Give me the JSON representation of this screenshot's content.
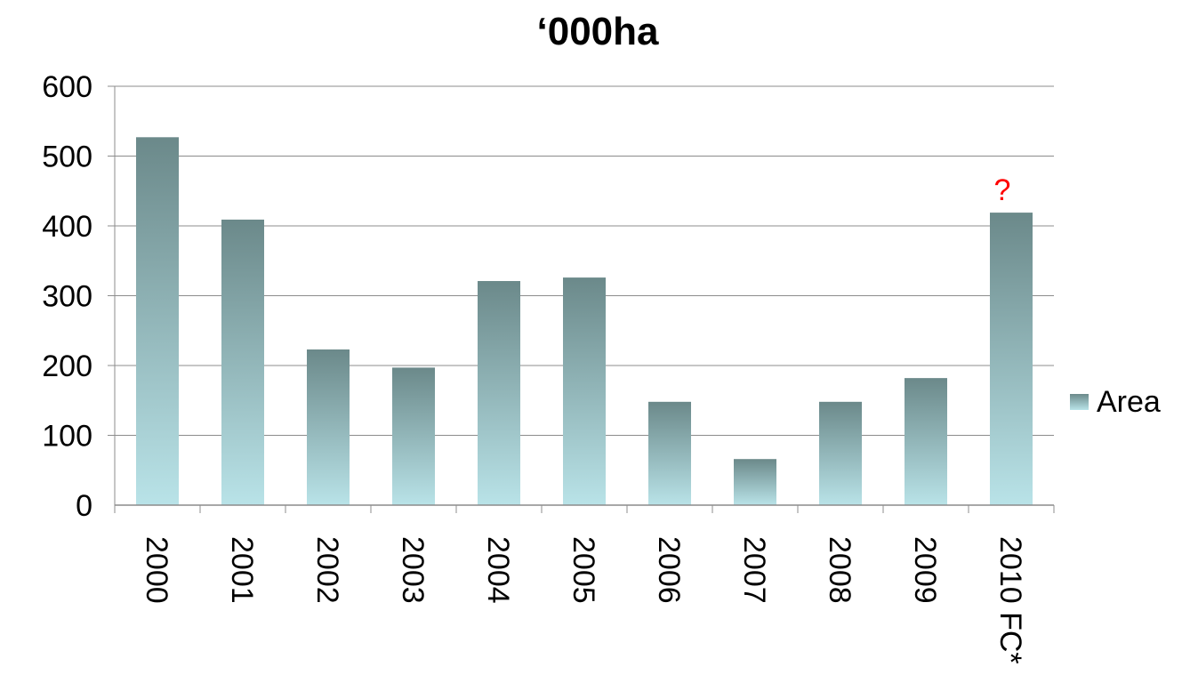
{
  "chart_data": {
    "type": "bar",
    "title": "‘000ha",
    "xlabel": "",
    "ylabel": "",
    "categories": [
      "2000",
      "2001",
      "2002",
      "2003",
      "2004",
      "2005",
      "2006",
      "2007",
      "2008",
      "2009",
      "2010 FC*"
    ],
    "series": [
      {
        "name": "Area",
        "values": [
          527,
          409,
          223,
          197,
          321,
          326,
          148,
          66,
          148,
          182,
          419
        ]
      }
    ],
    "ylim": [
      0,
      600
    ],
    "yticks": [
      "0",
      "100",
      "200",
      "300",
      "400",
      "500",
      "600"
    ],
    "grid": true,
    "legend": "right",
    "annotation": {
      "text": "?",
      "category": "2010 FC*",
      "color": "#ff0000"
    },
    "colors": {
      "bar_top": "#6b898a",
      "bar_bottom": "#b9e3e8",
      "grid": "#8c8c8c"
    }
  }
}
